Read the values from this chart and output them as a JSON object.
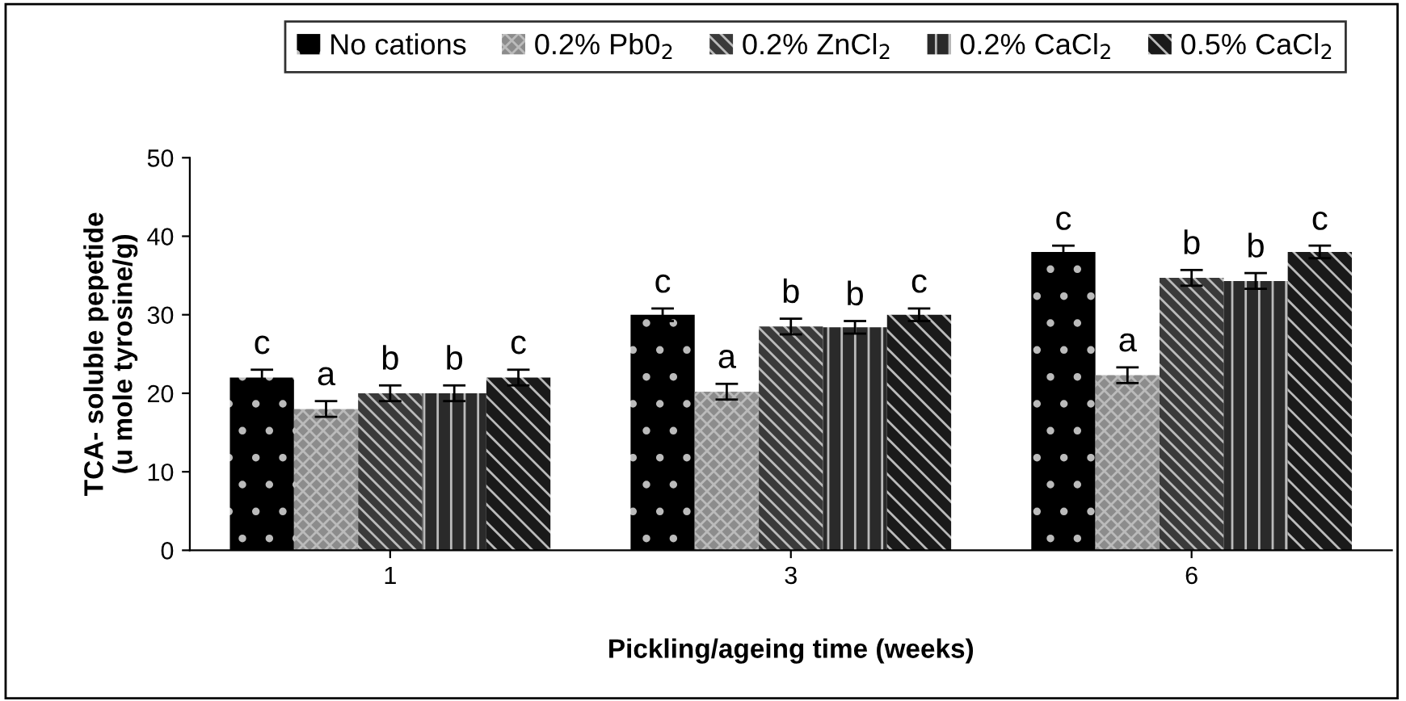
{
  "chart_data": {
    "type": "bar",
    "xlabel": "Pickling/ageing time (weeks)",
    "ylabel": "TCA- soluble pepetide\n(u mole tyrosine/g)",
    "categories": [
      "1",
      "3",
      "6"
    ],
    "ylim": [
      0,
      50
    ],
    "yticks": [
      0,
      10,
      20,
      30,
      40,
      50
    ],
    "legend": "top",
    "grid": false,
    "series": [
      {
        "name": "No cations",
        "color": "#000000",
        "values": [
          22,
          30,
          38
        ],
        "errors": [
          1,
          0.8,
          0.8
        ],
        "value_labels": [
          "c",
          "c",
          "c"
        ]
      },
      {
        "name": "0.2% Pb0$_{2}$",
        "color": "#8c8c8c",
        "values": [
          18,
          20.2,
          22.3
        ],
        "errors": [
          1,
          1,
          1
        ],
        "value_labels": [
          "a",
          "a",
          "a"
        ]
      },
      {
        "name": "0.2% ZnCl$_{2}$",
        "color": "#3a3a3a",
        "values": [
          20,
          28.5,
          34.7
        ],
        "errors": [
          1,
          1,
          1
        ],
        "value_labels": [
          "b",
          "b",
          "b"
        ]
      },
      {
        "name": "0.2% CaCl$_{2}$",
        "color": "#2a2a2a",
        "values": [
          20,
          28.4,
          34.3
        ],
        "errors": [
          1,
          0.8,
          1
        ],
        "value_labels": [
          "b",
          "b",
          "b"
        ]
      },
      {
        "name": "0.5% CaCl$_{2}$",
        "color": "#1a1a1a",
        "values": [
          22,
          30,
          38
        ],
        "errors": [
          1,
          0.8,
          0.8
        ],
        "value_labels": [
          "c",
          "c",
          "c"
        ]
      }
    ]
  }
}
